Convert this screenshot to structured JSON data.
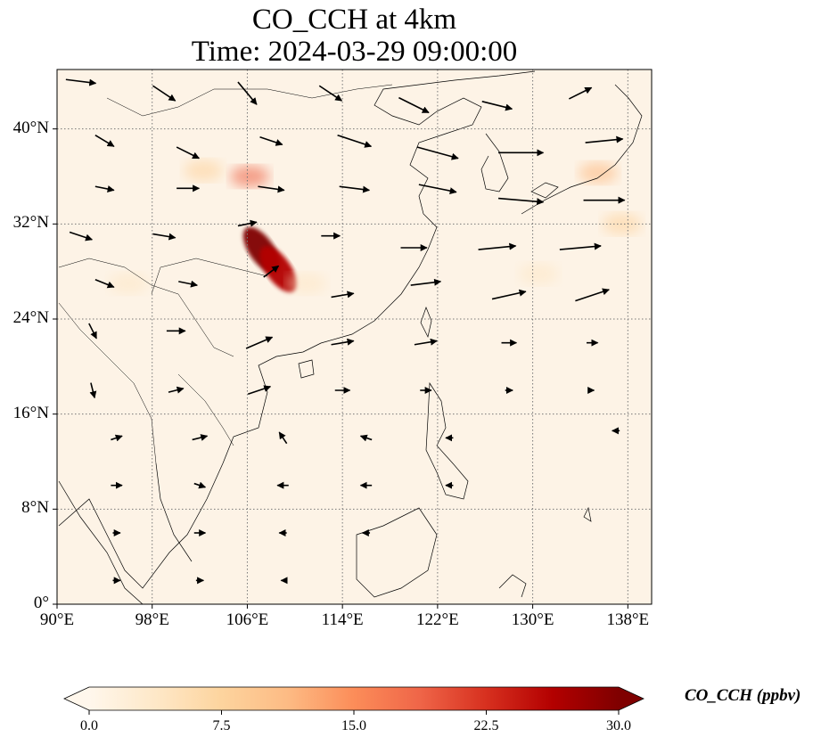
{
  "title": {
    "line1": "CO_CCH at 4km",
    "line2": "Time: 2024-03-29 09:00:00"
  },
  "map": {
    "projection": "PlateCarree",
    "lon_range": [
      90,
      140
    ],
    "lat_range": [
      0,
      45
    ],
    "gridlines": true,
    "gridline_style": "dotted",
    "coastlines": true,
    "borders": true,
    "lon_ticks": [
      90,
      98,
      106,
      114,
      122,
      130,
      138
    ],
    "lat_ticks": [
      0,
      8,
      16,
      24,
      32,
      40
    ],
    "lon_tick_labels": [
      "90°E",
      "98°E",
      "106°E",
      "114°E",
      "122°E",
      "130°E",
      "138°E"
    ],
    "lat_tick_labels": [
      "0°",
      "8°N",
      "16°N",
      "24°N",
      "32°N",
      "40°N"
    ],
    "field_name": "CO_CCH",
    "field_units": "ppbv",
    "colormap": "OrRd",
    "background_color": "#fdf3e6",
    "plumes": [
      {
        "lon": 107.2,
        "lat": 29.8,
        "value": 30
      },
      {
        "lon": 108.6,
        "lat": 28.2,
        "value": 26
      },
      {
        "lon": 106.2,
        "lat": 36.0,
        "value": 17
      },
      {
        "lon": 102.3,
        "lat": 36.5,
        "value": 7
      },
      {
        "lon": 135.5,
        "lat": 36.3,
        "value": 11
      },
      {
        "lon": 137.5,
        "lat": 32.0,
        "value": 6
      },
      {
        "lon": 130.5,
        "lat": 27.8,
        "value": 4
      },
      {
        "lon": 96.0,
        "lat": 27.0,
        "value": 3
      },
      {
        "lon": 111.0,
        "lat": 27.0,
        "value": 4
      }
    ],
    "wind_vectors": [
      {
        "lon": 92,
        "lat": 44,
        "u": 8,
        "v": -1
      },
      {
        "lon": 99,
        "lat": 43,
        "u": 6,
        "v": -4
      },
      {
        "lon": 106,
        "lat": 43,
        "u": 5,
        "v": -6
      },
      {
        "lon": 113,
        "lat": 43,
        "u": 6,
        "v": -4
      },
      {
        "lon": 120,
        "lat": 42,
        "u": 8,
        "v": -4
      },
      {
        "lon": 127,
        "lat": 42,
        "u": 8,
        "v": -2
      },
      {
        "lon": 134,
        "lat": 43,
        "u": 6,
        "v": 3
      },
      {
        "lon": 94,
        "lat": 39,
        "u": 5,
        "v": -3
      },
      {
        "lon": 101,
        "lat": 38,
        "u": 6,
        "v": -3
      },
      {
        "lon": 108,
        "lat": 39,
        "u": 6,
        "v": -2
      },
      {
        "lon": 115,
        "lat": 39,
        "u": 9,
        "v": -3
      },
      {
        "lon": 122,
        "lat": 38,
        "u": 11,
        "v": -3
      },
      {
        "lon": 129,
        "lat": 38,
        "u": 12,
        "v": 0
      },
      {
        "lon": 136,
        "lat": 39,
        "u": 10,
        "v": 1
      },
      {
        "lon": 94,
        "lat": 35,
        "u": 5,
        "v": -1
      },
      {
        "lon": 101,
        "lat": 35,
        "u": 6,
        "v": 0
      },
      {
        "lon": 108,
        "lat": 35,
        "u": 7,
        "v": -1
      },
      {
        "lon": 115,
        "lat": 35,
        "u": 8,
        "v": -1
      },
      {
        "lon": 122,
        "lat": 35,
        "u": 10,
        "v": -2
      },
      {
        "lon": 129,
        "lat": 34,
        "u": 12,
        "v": -1
      },
      {
        "lon": 136,
        "lat": 34,
        "u": 11,
        "v": 0
      },
      {
        "lon": 92,
        "lat": 31,
        "u": 6,
        "v": -2
      },
      {
        "lon": 99,
        "lat": 31,
        "u": 6,
        "v": -1
      },
      {
        "lon": 106,
        "lat": 32,
        "u": 5,
        "v": 1
      },
      {
        "lon": 113,
        "lat": 31,
        "u": 5,
        "v": 0
      },
      {
        "lon": 120,
        "lat": 30,
        "u": 7,
        "v": 0
      },
      {
        "lon": 127,
        "lat": 30,
        "u": 10,
        "v": 1
      },
      {
        "lon": 134,
        "lat": 30,
        "u": 11,
        "v": 1
      },
      {
        "lon": 94,
        "lat": 27,
        "u": 5,
        "v": -2
      },
      {
        "lon": 101,
        "lat": 27,
        "u": 5,
        "v": -1
      },
      {
        "lon": 108,
        "lat": 28,
        "u": 4,
        "v": 3
      },
      {
        "lon": 114,
        "lat": 26,
        "u": 6,
        "v": 1
      },
      {
        "lon": 121,
        "lat": 27,
        "u": 8,
        "v": 1
      },
      {
        "lon": 128,
        "lat": 26,
        "u": 9,
        "v": 2
      },
      {
        "lon": 135,
        "lat": 26,
        "u": 9,
        "v": 3
      },
      {
        "lon": 93,
        "lat": 23,
        "u": 2,
        "v": -4
      },
      {
        "lon": 100,
        "lat": 23,
        "u": 5,
        "v": 0
      },
      {
        "lon": 107,
        "lat": 22,
        "u": 7,
        "v": 3
      },
      {
        "lon": 114,
        "lat": 22,
        "u": 6,
        "v": 1
      },
      {
        "lon": 121,
        "lat": 22,
        "u": 6,
        "v": 1
      },
      {
        "lon": 128,
        "lat": 22,
        "u": 4,
        "v": 0
      },
      {
        "lon": 135,
        "lat": 22,
        "u": 3,
        "v": 0
      },
      {
        "lon": 93,
        "lat": 18,
        "u": 1,
        "v": -4
      },
      {
        "lon": 100,
        "lat": 18,
        "u": 4,
        "v": 1
      },
      {
        "lon": 107,
        "lat": 18,
        "u": 6,
        "v": 2
      },
      {
        "lon": 114,
        "lat": 18,
        "u": 4,
        "v": 0
      },
      {
        "lon": 121,
        "lat": 18,
        "u": 3,
        "v": 0
      },
      {
        "lon": 128,
        "lat": 18,
        "u": 2,
        "v": 0
      },
      {
        "lon": 135,
        "lat": 18,
        "u": 1,
        "v": 0
      },
      {
        "lon": 95,
        "lat": 14,
        "u": 3,
        "v": 1
      },
      {
        "lon": 102,
        "lat": 14,
        "u": 4,
        "v": 1
      },
      {
        "lon": 109,
        "lat": 14,
        "u": -2,
        "v": 3
      },
      {
        "lon": 116,
        "lat": 14,
        "u": -3,
        "v": 1
      },
      {
        "lon": 123,
        "lat": 14,
        "u": -2,
        "v": 0
      },
      {
        "lon": 137,
        "lat": 14.6,
        "u": -2,
        "v": 0
      },
      {
        "lon": 95,
        "lat": 10,
        "u": 3,
        "v": 0
      },
      {
        "lon": 102,
        "lat": 10,
        "u": 3,
        "v": -1
      },
      {
        "lon": 109,
        "lat": 10,
        "u": -3,
        "v": 0
      },
      {
        "lon": 116,
        "lat": 10,
        "u": -3,
        "v": 0
      },
      {
        "lon": 123,
        "lat": 10,
        "u": -2,
        "v": 0
      },
      {
        "lon": 95,
        "lat": 6,
        "u": 2,
        "v": 0
      },
      {
        "lon": 102,
        "lat": 6,
        "u": 3,
        "v": 0
      },
      {
        "lon": 109,
        "lat": 6,
        "u": -2,
        "v": 0
      },
      {
        "lon": 116,
        "lat": 6,
        "u": -2,
        "v": 0
      },
      {
        "lon": 95,
        "lat": 2,
        "u": 2,
        "v": 0
      },
      {
        "lon": 102,
        "lat": 2,
        "u": 2,
        "v": 0
      },
      {
        "lon": 109,
        "lat": 2,
        "u": -1,
        "v": 0
      }
    ]
  },
  "colorbar": {
    "label": "CO_CCH (ppbv)",
    "vmin": 0.0,
    "vmax": 30.0,
    "ticks": [
      0.0,
      7.5,
      15.0,
      22.5,
      30.0
    ],
    "tick_labels": [
      "0.0",
      "7.5",
      "15.0",
      "22.5",
      "30.0"
    ],
    "extend": "both",
    "colors": [
      "#fff7ec",
      "#fee8c8",
      "#fdd49e",
      "#fdbb84",
      "#fc8d59",
      "#ef6548",
      "#d7301f",
      "#b30000",
      "#7f0000"
    ]
  }
}
